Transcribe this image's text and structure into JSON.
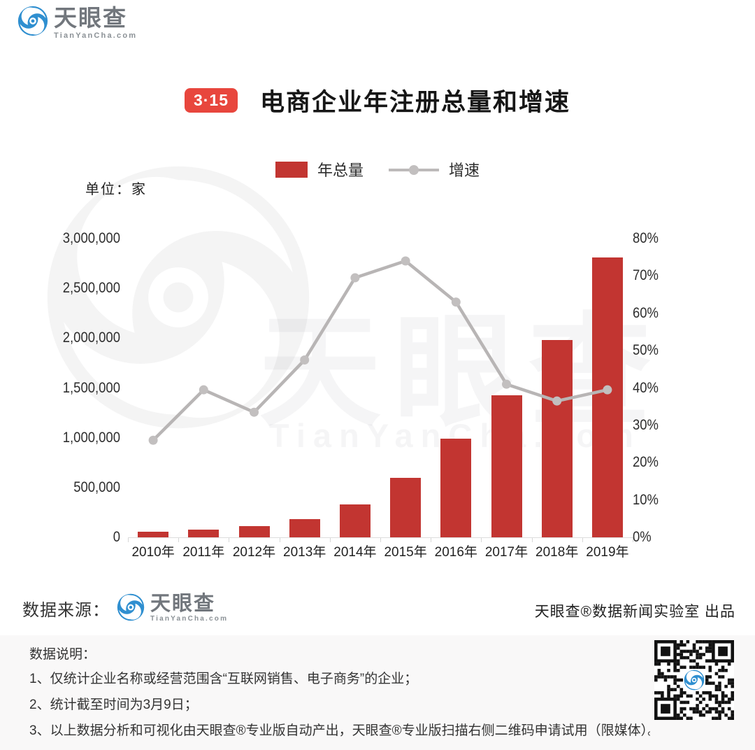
{
  "brand": {
    "name": "天眼查",
    "domain": "TianYanCha.com",
    "blue": "#2f8fd0"
  },
  "header": {
    "badge": "3·15",
    "title": "电商企业年注册总量和增速"
  },
  "unit_label": "单位：家",
  "chart_data": {
    "type": "bar+line combo",
    "title": "电商企业年注册总量和增速",
    "categories": [
      "2010年",
      "2011年",
      "2012年",
      "2013年",
      "2014年",
      "2015年",
      "2016年",
      "2017年",
      "2018年",
      "2019年"
    ],
    "series": [
      {
        "name": "年总量",
        "type": "bar",
        "axis": "left",
        "color": "#c23531",
        "values": [
          55000,
          80000,
          115000,
          185000,
          330000,
          600000,
          990000,
          1430000,
          1985000,
          2810000
        ]
      },
      {
        "name": "增速",
        "type": "line",
        "axis": "right",
        "color": "#b8b5b5",
        "marker_color": "#c2bfbf",
        "values_pct": [
          26,
          39.5,
          33.5,
          47.5,
          69.5,
          74,
          63,
          41,
          36.5,
          39.5
        ]
      }
    ],
    "left_axis": {
      "label": "单位：家",
      "min": 0,
      "max": 3000000,
      "ticks": [
        "3,000,000",
        "2,500,000",
        "2,000,000",
        "1,500,000",
        "1,000,000",
        "500,000",
        "0"
      ]
    },
    "right_axis": {
      "min": 0,
      "max": 80,
      "ticks": [
        "80%",
        "70%",
        "60%",
        "50%",
        "40%",
        "30%",
        "20%",
        "10%",
        "0%"
      ]
    },
    "grid": "off",
    "legend_position": "top-center"
  },
  "footer": {
    "source_label": "数据来源：",
    "producer": "天眼查®数据新闻实验室 出品"
  },
  "notes": {
    "title": "数据说明：",
    "items": [
      "1、仅统计企业名称或经营范围含“互联网销售、电子商务”的企业；",
      "2、统计截至时间为3月9日；",
      "3、以上数据分析和可视化由天眼查®专业版自动产出，天眼查®专业版扫描右侧二维码申请试用（限媒体）。"
    ]
  },
  "qr": {
    "label": "tianyancha-qr-code"
  }
}
